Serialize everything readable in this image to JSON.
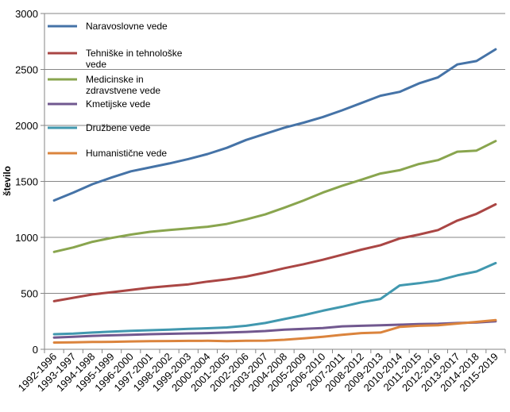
{
  "chart_data": {
    "type": "line",
    "title": "",
    "xlabel": "",
    "ylabel": "število",
    "ylim": [
      0,
      3000
    ],
    "yticks": [
      0,
      500,
      1000,
      1500,
      2000,
      2500,
      3000
    ],
    "grid": "horizontal",
    "legend_position": "top-left",
    "categories": [
      "1992-1996",
      "1993-1997",
      "1994-1998",
      "1995-1999",
      "1996-2000",
      "1997-2001",
      "1998-2002",
      "1999-2003",
      "2000-2004",
      "2001-2005",
      "2002-2006",
      "2003-2007",
      "2004-2008",
      "2005-2009",
      "2006-2010",
      "2007-2011",
      "2008-2012",
      "2009-2013",
      "2010-2014",
      "2011-2015",
      "2012-2016",
      "2013-2017",
      "2014-2018",
      "2015-2019"
    ],
    "series": [
      {
        "name": "Naravoslovne vede",
        "legend_lines": [
          "Naravoslovne vede"
        ],
        "color": "#4573A7",
        "values": [
          1330,
          1400,
          1475,
          1535,
          1590,
          1625,
          1660,
          1700,
          1745,
          1800,
          1870,
          1925,
          1980,
          2025,
          2075,
          2135,
          2200,
          2265,
          2300,
          2375,
          2430,
          2545,
          2575,
          2680
        ]
      },
      {
        "name": "Tehniške in tehnološke vede",
        "legend_lines": [
          "Tehniške in tehnološke",
          "vede"
        ],
        "color": "#AA4644",
        "values": [
          430,
          460,
          490,
          510,
          530,
          550,
          565,
          580,
          605,
          625,
          650,
          685,
          725,
          760,
          800,
          845,
          890,
          930,
          990,
          1025,
          1065,
          1150,
          1210,
          1295
        ]
      },
      {
        "name": "Medicinske in zdravstvene vede",
        "legend_lines": [
          "Medicinske in",
          "zdravstvene vede"
        ],
        "color": "#89A54E",
        "values": [
          870,
          910,
          960,
          995,
          1025,
          1050,
          1065,
          1080,
          1095,
          1120,
          1160,
          1205,
          1265,
          1330,
          1400,
          1460,
          1515,
          1570,
          1600,
          1655,
          1690,
          1765,
          1775,
          1860
        ]
      },
      {
        "name": "Kmetijske vede",
        "legend_lines": [
          "Kmetijske vede"
        ],
        "color": "#71588F",
        "values": [
          105,
          112,
          120,
          125,
          130,
          135,
          138,
          142,
          145,
          150,
          155,
          163,
          175,
          182,
          190,
          205,
          210,
          215,
          220,
          225,
          228,
          235,
          240,
          250
        ]
      },
      {
        "name": "Družbene vede",
        "legend_lines": [
          "Družbene vede"
        ],
        "color": "#4198AF",
        "values": [
          135,
          140,
          150,
          158,
          165,
          170,
          175,
          182,
          188,
          195,
          210,
          235,
          270,
          305,
          345,
          380,
          420,
          450,
          570,
          590,
          615,
          660,
          695,
          770
        ]
      },
      {
        "name": "Humanistične vede",
        "legend_lines": [
          "Humanistične vede"
        ],
        "color": "#DB843D",
        "values": [
          60,
          62,
          65,
          67,
          70,
          72,
          74,
          75,
          76,
          73,
          76,
          77,
          85,
          98,
          112,
          130,
          145,
          150,
          200,
          210,
          215,
          230,
          245,
          260
        ]
      }
    ]
  }
}
